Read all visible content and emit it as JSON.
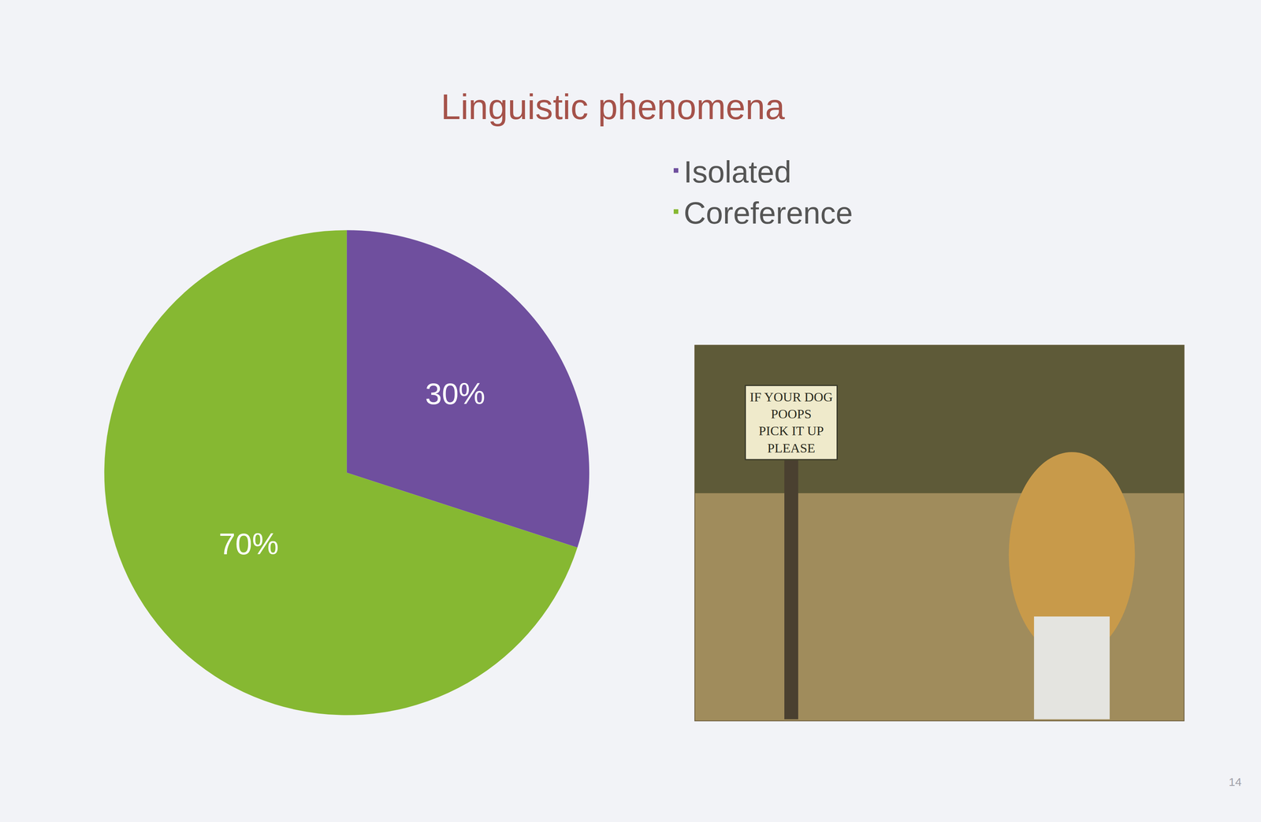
{
  "chart_data": {
    "type": "pie",
    "title": "Linguistic phenomena",
    "categories": [
      "Isolated",
      "Coreference"
    ],
    "values": [
      30,
      70
    ],
    "value_labels": [
      "30%",
      "70%"
    ],
    "colors": [
      "#6f4f9e",
      "#86b832"
    ],
    "data_labels": true,
    "legend": "top right",
    "annotations": [
      "IF YOUR DOG\nPOOPS\nPICK IT UP\nPLEASE",
      "14"
    ]
  }
}
